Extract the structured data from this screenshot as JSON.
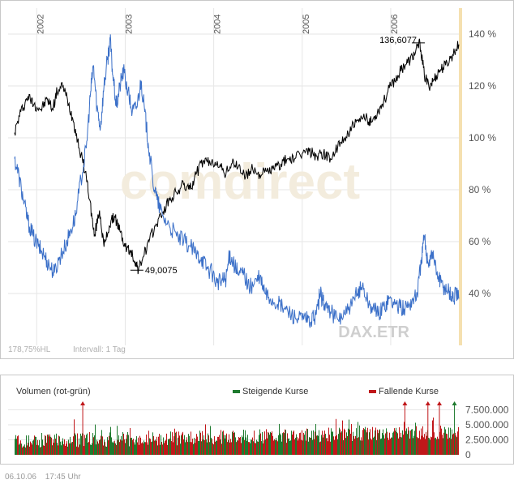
{
  "chart_data": [
    {
      "type": "line",
      "x_labels": [
        "2002",
        "2003",
        "2004",
        "2005",
        "2006"
      ],
      "y_ticks": [
        "140 %",
        "120 %",
        "100 %",
        "80 %",
        "60 %",
        "40 %"
      ],
      "y_tick_values": [
        140,
        120,
        100,
        80,
        60,
        40
      ],
      "ylim": [
        20,
        150
      ],
      "xlim": [
        2001.75,
        2006.77
      ],
      "grid": true,
      "watermark": "comdirect",
      "symbol_label": "DAX.ETR",
      "info_left": "178,75%HL",
      "info_interval": "Intervall: 1 Tag",
      "annotations": [
        {
          "text": "136,6077",
          "x": 2006.33,
          "y": 136.6
        },
        {
          "text": "49,0075",
          "x": 2003.15,
          "y": 49.0
        }
      ],
      "series": [
        {
          "color": "#000000",
          "points": [
            [
              2001.75,
              102
            ],
            [
              2001.82,
              110
            ],
            [
              2001.9,
              116
            ],
            [
              2001.97,
              113
            ],
            [
              2002.05,
              111
            ],
            [
              2002.12,
              115
            ],
            [
              2002.18,
              111
            ],
            [
              2002.23,
              118
            ],
            [
              2002.3,
              120
            ],
            [
              2002.36,
              113
            ],
            [
              2002.42,
              106
            ],
            [
              2002.48,
              96
            ],
            [
              2002.55,
              87
            ],
            [
              2002.6,
              76
            ],
            [
              2002.65,
              62
            ],
            [
              2002.71,
              72
            ],
            [
              2002.76,
              58
            ],
            [
              2002.82,
              66
            ],
            [
              2002.88,
              70
            ],
            [
              2002.94,
              64
            ],
            [
              2003.0,
              58
            ],
            [
              2003.06,
              56
            ],
            [
              2003.12,
              52
            ],
            [
              2003.15,
              49
            ],
            [
              2003.2,
              54
            ],
            [
              2003.27,
              60
            ],
            [
              2003.34,
              66
            ],
            [
              2003.42,
              71
            ],
            [
              2003.5,
              76
            ],
            [
              2003.58,
              79
            ],
            [
              2003.66,
              82
            ],
            [
              2003.73,
              80
            ],
            [
              2003.8,
              86
            ],
            [
              2003.88,
              91
            ],
            [
              2003.96,
              90
            ],
            [
              2004.04,
              91
            ],
            [
              2004.12,
              86
            ],
            [
              2004.2,
              90
            ],
            [
              2004.28,
              89
            ],
            [
              2004.36,
              85
            ],
            [
              2004.44,
              88
            ],
            [
              2004.52,
              86
            ],
            [
              2004.6,
              87
            ],
            [
              2004.68,
              88
            ],
            [
              2004.76,
              90
            ],
            [
              2004.84,
              92
            ],
            [
              2004.92,
              92
            ],
            [
              2005.0,
              94
            ],
            [
              2005.08,
              95
            ],
            [
              2005.16,
              93
            ],
            [
              2005.24,
              94
            ],
            [
              2005.32,
              92
            ],
            [
              2005.4,
              96
            ],
            [
              2005.48,
              100
            ],
            [
              2005.56,
              104
            ],
            [
              2005.64,
              106
            ],
            [
              2005.72,
              108
            ],
            [
              2005.78,
              106
            ],
            [
              2005.85,
              110
            ],
            [
              2005.92,
              114
            ],
            [
              2006.0,
              120
            ],
            [
              2006.08,
              124
            ],
            [
              2006.15,
              128
            ],
            [
              2006.22,
              130
            ],
            [
              2006.28,
              133
            ],
            [
              2006.33,
              136.6
            ],
            [
              2006.38,
              124
            ],
            [
              2006.43,
              120
            ],
            [
              2006.48,
              122
            ],
            [
              2006.55,
              126
            ],
            [
              2006.62,
              128
            ],
            [
              2006.7,
              132
            ],
            [
              2006.77,
              136
            ]
          ]
        },
        {
          "color": "#3a6fc8",
          "points": [
            [
              2001.75,
              92
            ],
            [
              2001.8,
              85
            ],
            [
              2001.85,
              76
            ],
            [
              2001.9,
              68
            ],
            [
              2001.96,
              62
            ],
            [
              2002.02,
              58
            ],
            [
              2002.08,
              55
            ],
            [
              2002.14,
              51
            ],
            [
              2002.2,
              48
            ],
            [
              2002.26,
              54
            ],
            [
              2002.32,
              58
            ],
            [
              2002.38,
              64
            ],
            [
              2002.44,
              70
            ],
            [
              2002.5,
              84
            ],
            [
              2002.56,
              96
            ],
            [
              2002.61,
              118
            ],
            [
              2002.64,
              128
            ],
            [
              2002.68,
              112
            ],
            [
              2002.72,
              104
            ],
            [
              2002.76,
              120
            ],
            [
              2002.8,
              130
            ],
            [
              2002.83,
              138
            ],
            [
              2002.86,
              124
            ],
            [
              2002.9,
              112
            ],
            [
              2002.94,
              120
            ],
            [
              2002.98,
              126
            ],
            [
              2003.03,
              118
            ],
            [
              2003.08,
              110
            ],
            [
              2003.13,
              112
            ],
            [
              2003.18,
              122
            ],
            [
              2003.22,
              110
            ],
            [
              2003.26,
              98
            ],
            [
              2003.31,
              84
            ],
            [
              2003.36,
              76
            ],
            [
              2003.42,
              70
            ],
            [
              2003.5,
              66
            ],
            [
              2003.58,
              62
            ],
            [
              2003.66,
              60
            ],
            [
              2003.74,
              58
            ],
            [
              2003.8,
              55
            ],
            [
              2003.86,
              54
            ],
            [
              2003.92,
              50
            ],
            [
              2003.98,
              48
            ],
            [
              2004.04,
              44
            ],
            [
              2004.1,
              45
            ],
            [
              2004.14,
              46
            ],
            [
              2004.18,
              55
            ],
            [
              2004.22,
              52
            ],
            [
              2004.28,
              47
            ],
            [
              2004.34,
              48
            ],
            [
              2004.4,
              42
            ],
            [
              2004.46,
              44
            ],
            [
              2004.52,
              46
            ],
            [
              2004.58,
              40
            ],
            [
              2004.64,
              38
            ],
            [
              2004.72,
              36
            ],
            [
              2004.8,
              34
            ],
            [
              2004.88,
              32
            ],
            [
              2004.96,
              30
            ],
            [
              2005.04,
              30
            ],
            [
              2005.1,
              29
            ],
            [
              2005.16,
              32
            ],
            [
              2005.2,
              40
            ],
            [
              2005.25,
              36
            ],
            [
              2005.32,
              33
            ],
            [
              2005.4,
              30
            ],
            [
              2005.48,
              32
            ],
            [
              2005.56,
              35
            ],
            [
              2005.62,
              40
            ],
            [
              2005.68,
              43
            ],
            [
              2005.74,
              37
            ],
            [
              2005.8,
              34
            ],
            [
              2005.86,
              32
            ],
            [
              2005.92,
              35
            ],
            [
              2005.98,
              38
            ],
            [
              2006.05,
              36
            ],
            [
              2006.12,
              34
            ],
            [
              2006.18,
              35
            ],
            [
              2006.24,
              37
            ],
            [
              2006.3,
              40
            ],
            [
              2006.35,
              54
            ],
            [
              2006.38,
              62
            ],
            [
              2006.42,
              52
            ],
            [
              2006.47,
              56
            ],
            [
              2006.52,
              48
            ],
            [
              2006.57,
              44
            ],
            [
              2006.62,
              42
            ],
            [
              2006.66,
              41
            ],
            [
              2006.7,
              38
            ],
            [
              2006.74,
              40
            ],
            [
              2006.77,
              38
            ]
          ]
        }
      ]
    },
    {
      "type": "bar",
      "title": "Volumen (rot-grün)",
      "legend": [
        {
          "name": "Steigende Kurse",
          "color": "#1e7a2e"
        },
        {
          "name": "Fallende Kurse",
          "color": "#c0171a"
        }
      ],
      "y_ticks": [
        "7.500.000",
        "5.000.000",
        "2.500.000",
        "0"
      ],
      "y_tick_values": [
        7500000,
        5000000,
        2500000,
        0
      ],
      "ylim": [
        0,
        8500000
      ],
      "xlim": [
        2001.75,
        2006.77
      ],
      "up_color": "#1e7a2e",
      "down_color": "#c0171a",
      "spikes": [
        {
          "x": 2002.52,
          "color": "#c0171a"
        },
        {
          "x": 2006.16,
          "color": "#c0171a"
        },
        {
          "x": 2006.42,
          "color": "#c0171a"
        },
        {
          "x": 2006.55,
          "color": "#c0171a"
        },
        {
          "x": 2006.72,
          "color": "#1e7a2e"
        }
      ]
    }
  ],
  "footer": {
    "date": "06.10.06",
    "time": "17:45 Uhr"
  }
}
